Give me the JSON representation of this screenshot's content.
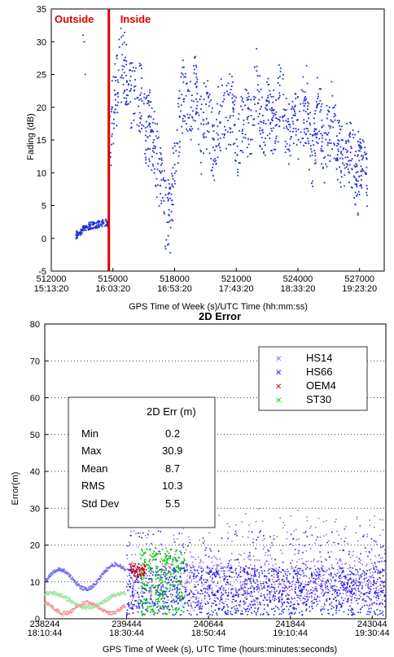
{
  "colors": {
    "fading": "#1f2fd9",
    "divider": "#e00000",
    "HS14": "#9966ee",
    "HS66": "#1a1ae6",
    "OEM4": "#e00000",
    "ST30": "#00cc00",
    "pink": "#f29a9a",
    "lightgreen": "#9ee39e",
    "lightblue": "#6f6ff5"
  },
  "chart_data": [
    {
      "type": "scatter",
      "title": "",
      "xlabel": "GPS Time of Week (s)/UTC Time (hh:mm:ss)",
      "ylabel": "Fading (dB)",
      "xlim": [
        512000,
        528200
      ],
      "ylim": [
        -5,
        35
      ],
      "xticks": [
        {
          "value": 512000,
          "label": "512000",
          "sublabel": "15:13:20"
        },
        {
          "value": 515000,
          "label": "515000",
          "sublabel": "16:03:20"
        },
        {
          "value": 518000,
          "label": "518000",
          "sublabel": "16:53:20"
        },
        {
          "value": 521000,
          "label": "521000",
          "sublabel": "17:43:20"
        },
        {
          "value": 524000,
          "label": "524000",
          "sublabel": "18:33:20"
        },
        {
          "value": 527000,
          "label": "527000",
          "sublabel": "19:23:20"
        }
      ],
      "yticks": [
        "-5",
        "0",
        "5",
        "10",
        "15",
        "20",
        "25",
        "30",
        "35"
      ],
      "divider_x": 514800,
      "zones": {
        "left": "Outside",
        "right": "Inside"
      },
      "envelope": [
        [
          513200,
          0.5
        ],
        [
          513600,
          1.5
        ],
        [
          514000,
          2
        ],
        [
          514400,
          2.2
        ],
        [
          514780,
          2.4
        ],
        [
          514850,
          15
        ],
        [
          515100,
          22
        ],
        [
          515400,
          26
        ],
        [
          515700,
          24
        ],
        [
          516000,
          21
        ],
        [
          516300,
          22
        ],
        [
          516600,
          18
        ],
        [
          517000,
          14
        ],
        [
          517300,
          9
        ],
        [
          517600,
          3
        ],
        [
          517800,
          4
        ],
        [
          518100,
          15
        ],
        [
          518400,
          22
        ],
        [
          518700,
          19
        ],
        [
          519000,
          23
        ],
        [
          519300,
          16
        ],
        [
          519600,
          21
        ],
        [
          519900,
          13
        ],
        [
          520200,
          19
        ],
        [
          520500,
          18
        ],
        [
          520800,
          21
        ],
        [
          521100,
          12
        ],
        [
          521400,
          20
        ],
        [
          521700,
          17
        ],
        [
          522000,
          24
        ],
        [
          522300,
          15
        ],
        [
          522600,
          20
        ],
        [
          522900,
          18
        ],
        [
          523200,
          22
        ],
        [
          523500,
          14
        ],
        [
          523800,
          19
        ],
        [
          524100,
          17
        ],
        [
          524400,
          21
        ],
        [
          524700,
          13
        ],
        [
          525000,
          19
        ],
        [
          525300,
          14
        ],
        [
          525600,
          18
        ],
        [
          525900,
          15
        ],
        [
          526200,
          12
        ],
        [
          526500,
          14
        ],
        [
          526800,
          10
        ],
        [
          527100,
          11
        ],
        [
          527400,
          10
        ]
      ]
    },
    {
      "type": "scatter",
      "title": "2D Error",
      "xlabel": "GPS Time of Week (s), UTC Time (hours:minutes:seconds)",
      "ylabel": "Error(m)",
      "xlim": [
        238244,
        243244
      ],
      "ylim": [
        0,
        80
      ],
      "xticks": [
        {
          "value": 238244,
          "label": "238244",
          "sublabel": "18:10:44"
        },
        {
          "value": 239444,
          "label": "239444",
          "sublabel": "18:30:44"
        },
        {
          "value": 240644,
          "label": "240644",
          "sublabel": "18:50:44"
        },
        {
          "value": 241844,
          "label": "241844",
          "sublabel": "19:10:44"
        },
        {
          "value": 243044,
          "label": "243044",
          "sublabel": "19:30:44"
        }
      ],
      "yticks": [
        "0",
        "10",
        "20",
        "30",
        "40",
        "50",
        "60",
        "70",
        "80"
      ],
      "legend": {
        "position": "top-right",
        "entries": [
          "HS14",
          "HS66",
          "OEM4",
          "ST30"
        ]
      },
      "stats": {
        "header": "2D Err (m)",
        "rows": [
          {
            "label": "Min",
            "value": "0.2"
          },
          {
            "label": "Max",
            "value": "30.9"
          },
          {
            "label": "Mean",
            "value": "8.7"
          },
          {
            "label": "RMS",
            "value": "10.3"
          },
          {
            "label": "Std Dev",
            "value": "5.5"
          }
        ]
      }
    }
  ]
}
